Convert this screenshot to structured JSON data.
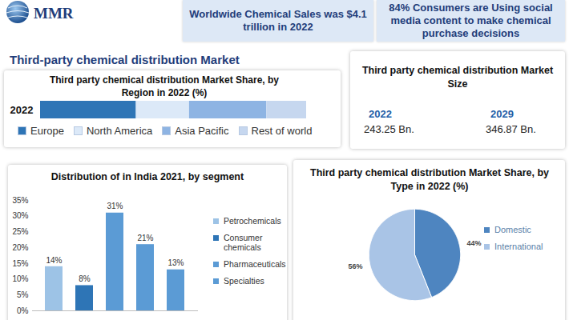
{
  "header": {
    "logo": "MMR",
    "facts": [
      "Worldwide Chemical Sales was $4.1 trillion in 2022",
      "84% Consumers are Using social media content to make chemical purchase decisions"
    ],
    "title": "Third-party chemical distribution Market"
  },
  "market_size": {
    "title": "Third party chemical distribution Market Size",
    "columns": [
      {
        "year": "2022",
        "value": "243.25 Bn."
      },
      {
        "year": "2029",
        "value": "346.87 Bn."
      }
    ]
  },
  "chart_data": [
    {
      "type": "bar",
      "title": "Third party chemical distribution Market Share, by Region in 2022 (%)",
      "orientation": "horizontal",
      "stacked": true,
      "categories": [
        "2022"
      ],
      "series": [
        {
          "name": "Europe",
          "color": "#2e75b6",
          "values": [
            36
          ]
        },
        {
          "name": "North America",
          "color": "#dce9f8",
          "values": [
            20
          ]
        },
        {
          "name": "Asia Pacific",
          "color": "#8eb4e3",
          "values": [
            29
          ]
        },
        {
          "name": "Rest of world",
          "color": "#c6d7ef",
          "values": [
            15
          ]
        }
      ],
      "xlim": [
        0,
        100
      ],
      "tick_labels": "y",
      "legend": "bottom",
      "grid": false
    },
    {
      "type": "bar",
      "title": "Distribution of in India 2021, by segment",
      "categories": [
        null,
        null,
        null,
        null,
        null
      ],
      "series": [
        {
          "name": "Petrochemicals",
          "color": "#9dc3e6",
          "values": [
            14,
            null,
            null,
            null,
            null
          ],
          "value_labels": [
            "14%",
            null,
            null,
            null,
            null
          ]
        },
        {
          "name": "Consumer chemicals",
          "color": "#2e75b6",
          "values": [
            null,
            8,
            null,
            null,
            null
          ],
          "value_labels": [
            null,
            "8%",
            null,
            null,
            null
          ]
        },
        {
          "name": "Pharmaceuticals",
          "color": "#5b9bd5",
          "values": [
            null,
            null,
            31,
            null,
            null
          ],
          "value_labels": [
            null,
            null,
            "31%",
            null,
            null
          ]
        },
        {
          "name": "Specialties",
          "color": "#5b9bd5",
          "values": [
            null,
            null,
            null,
            21,
            13
          ],
          "value_labels": [
            null,
            null,
            null,
            "21%",
            "13%"
          ]
        }
      ],
      "ylim": [
        0,
        35
      ],
      "yticks": [
        {
          "value": 0,
          "label": "0%"
        },
        {
          "value": 5,
          "label": "5%"
        },
        {
          "value": 10,
          "label": "10%"
        },
        {
          "value": 15,
          "label": "15%"
        },
        {
          "value": 20,
          "label": "20%"
        },
        {
          "value": 25,
          "label": "25%"
        },
        {
          "value": 30,
          "label": "30%"
        },
        {
          "value": 35,
          "label": "35%"
        }
      ],
      "data_labels": true,
      "tick_labels": "y",
      "legend": "right",
      "grid": false
    },
    {
      "type": "pie",
      "title": "Third party chemical distribution Market Share, by Type in 2022 (%)",
      "categories": [
        "Domestic",
        "International"
      ],
      "values": [
        44,
        56
      ],
      "value_labels": [
        "44%",
        "56%"
      ],
      "colors": [
        "#4e85c0",
        "#a9c4e6"
      ],
      "data_labels": true,
      "legend": "right"
    }
  ]
}
